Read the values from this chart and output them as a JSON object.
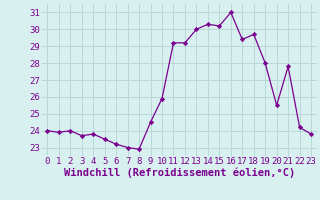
{
  "x": [
    0,
    1,
    2,
    3,
    4,
    5,
    6,
    7,
    8,
    9,
    10,
    11,
    12,
    13,
    14,
    15,
    16,
    17,
    18,
    19,
    20,
    21,
    22,
    23
  ],
  "y": [
    24.0,
    23.9,
    24.0,
    23.7,
    23.8,
    23.5,
    23.2,
    23.0,
    22.9,
    24.5,
    25.9,
    29.2,
    29.2,
    30.0,
    30.3,
    30.2,
    31.0,
    29.4,
    29.7,
    28.0,
    25.5,
    27.8,
    24.2,
    23.8
  ],
  "line_color": "#7b0090",
  "marker": "D",
  "marker_size": 2.2,
  "bg_color": "#d8f0f0",
  "grid_color": "#b8d8d8",
  "xlabel": "Windchill (Refroidissement éolien,°C)",
  "xlabel_fontsize": 7.5,
  "tick_fontsize": 6.5,
  "ylim": [
    22.5,
    31.5
  ],
  "yticks": [
    23,
    24,
    25,
    26,
    27,
    28,
    29,
    30,
    31
  ],
  "xticks": [
    0,
    1,
    2,
    3,
    4,
    5,
    6,
    7,
    8,
    9,
    10,
    11,
    12,
    13,
    14,
    15,
    16,
    17,
    18,
    19,
    20,
    21,
    22,
    23
  ]
}
